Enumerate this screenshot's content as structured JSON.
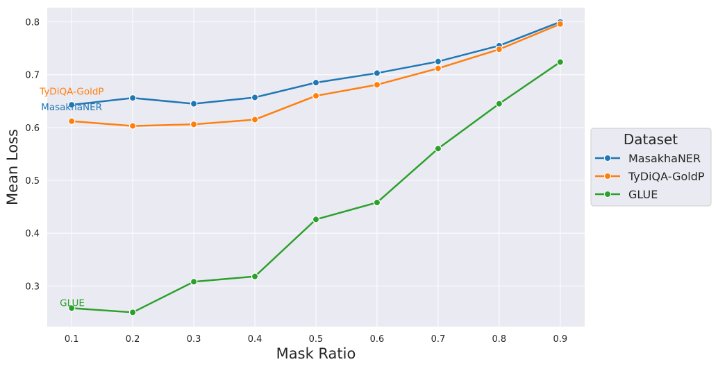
{
  "chart_data": {
    "type": "line",
    "title": "",
    "xlabel": "Mask Ratio",
    "ylabel": "Mean Loss",
    "x": [
      0.1,
      0.2,
      0.3,
      0.4,
      0.5,
      0.6,
      0.7,
      0.8,
      0.9
    ],
    "x_ticks": [
      "0.1",
      "0.2",
      "0.3",
      "0.4",
      "0.5",
      "0.6",
      "0.7",
      "0.8",
      "0.9"
    ],
    "y_ticks": [
      "0.3",
      "0.4",
      "0.5",
      "0.6",
      "0.7",
      "0.8"
    ],
    "xlim": [
      0.06,
      0.94
    ],
    "ylim": [
      0.223,
      0.827
    ],
    "grid": true,
    "legend": {
      "title": "Dataset",
      "position": "center-right-outside"
    },
    "series": [
      {
        "name": "MasakhaNER",
        "color": "#1f77b4",
        "values": [
          0.643,
          0.656,
          0.645,
          0.657,
          0.685,
          0.703,
          0.725,
          0.755,
          0.8
        ]
      },
      {
        "name": "TyDiQA-GoldP",
        "color": "#ff7f0e",
        "values": [
          0.612,
          0.603,
          0.606,
          0.615,
          0.66,
          0.681,
          0.712,
          0.748,
          0.796
        ]
      },
      {
        "name": "GLUE",
        "color": "#2ca02c",
        "values": [
          0.258,
          0.25,
          0.308,
          0.318,
          0.426,
          0.458,
          0.56,
          0.645,
          0.724
        ]
      }
    ],
    "annotations": [
      "MasakhaNER",
      "TyDiQA-GoldP",
      "GLUE"
    ]
  }
}
